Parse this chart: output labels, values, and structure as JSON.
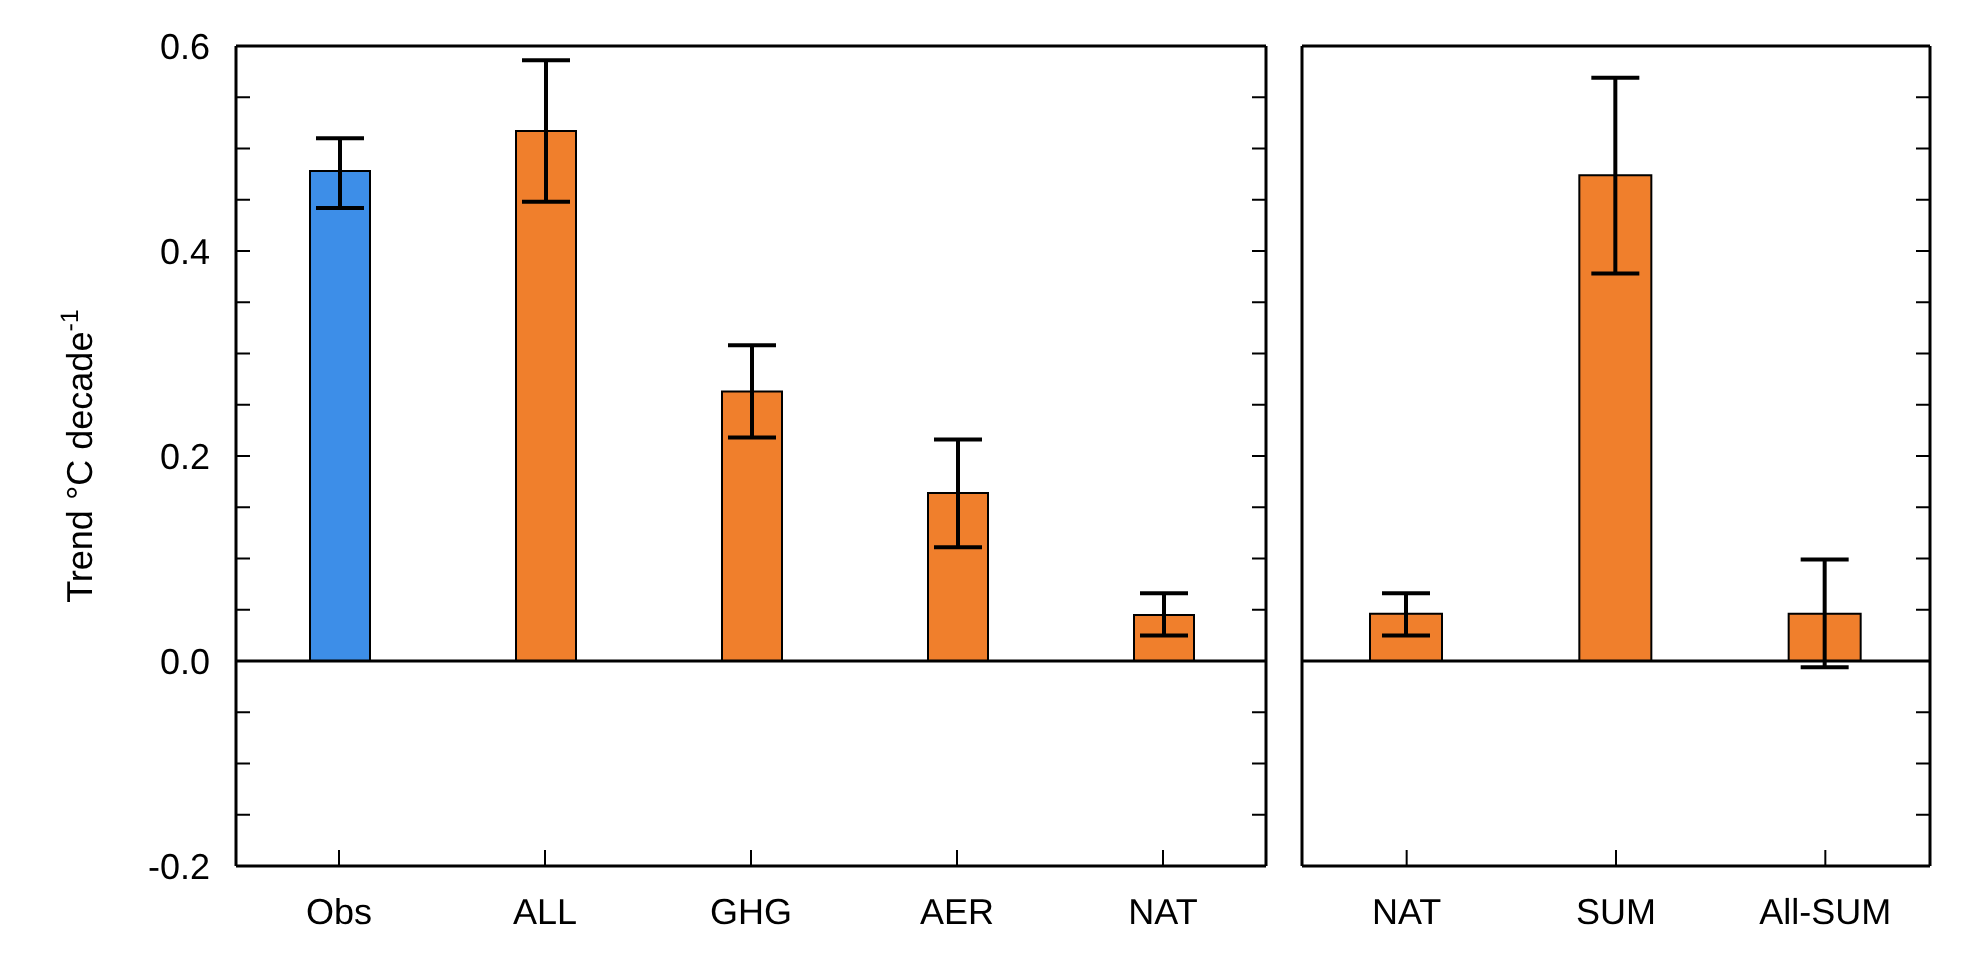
{
  "chart_data": [
    {
      "type": "bar",
      "ylabel": "Trend °C decade$^{-1}$",
      "categories": [
        "Obs",
        "ALL",
        "GHG",
        "AER",
        "NAT"
      ],
      "values": [
        0.478,
        0.517,
        0.263,
        0.164,
        0.045
      ],
      "errors": [
        [
          0.442,
          0.51
        ],
        [
          0.448,
          0.586
        ],
        [
          0.218,
          0.308
        ],
        [
          0.111,
          0.216
        ],
        [
          0.025,
          0.066
        ]
      ],
      "colors": [
        "#3d8ee8",
        "#f07f2c",
        "#f07f2c",
        "#f07f2c",
        "#f07f2c"
      ],
      "ylim": [
        -0.2,
        0.6
      ],
      "yticks": [
        -0.2,
        {
          "value": -0.15,
          "label": null
        },
        {
          "value": -0.1,
          "label": null
        },
        {
          "value": -0.05,
          "label": null
        },
        {
          "value": 0,
          "label": "0.0"
        },
        {
          "value": 0.05,
          "label": null
        },
        {
          "value": 0.1,
          "label": null
        },
        {
          "value": 0.15,
          "label": null
        },
        0.2,
        {
          "value": 0.25,
          "label": null
        },
        {
          "value": 0.3,
          "label": null
        },
        {
          "value": 0.35,
          "label": null
        },
        0.4,
        {
          "value": 0.45,
          "label": null
        },
        {
          "value": 0.5,
          "label": null
        },
        {
          "value": 0.55,
          "label": null
        },
        0.6
      ],
      "ref_lines": [
        {
          "axis": "y",
          "value": 0
        }
      ]
    },
    {
      "type": "bar",
      "categories": [
        "NAT",
        "SUM",
        "All-SUM"
      ],
      "values": [
        0.046,
        0.474,
        0.046
      ],
      "errors": [
        [
          0.025,
          0.066
        ],
        [
          0.378,
          0.569
        ],
        [
          -0.006,
          0.099
        ]
      ],
      "colors": [
        "#f07f2c",
        "#f07f2c",
        "#f07f2c"
      ],
      "ylim": [
        -0.2,
        0.6
      ],
      "yticks": [
        {
          "value": -0.2,
          "label": null
        },
        {
          "value": -0.15,
          "label": null
        },
        {
          "value": -0.1,
          "label": null
        },
        {
          "value": -0.05,
          "label": null
        },
        {
          "value": 0,
          "label": null
        },
        {
          "value": 0.05,
          "label": null
        },
        {
          "value": 0.1,
          "label": null
        },
        {
          "value": 0.15,
          "label": null
        },
        {
          "value": 0.2,
          "label": null
        },
        {
          "value": 0.25,
          "label": null
        },
        {
          "value": 0.3,
          "label": null
        },
        {
          "value": 0.35,
          "label": null
        },
        {
          "value": 0.4,
          "label": null
        },
        {
          "value": 0.45,
          "label": null
        },
        {
          "value": 0.5,
          "label": null
        },
        {
          "value": 0.55,
          "label": null
        },
        {
          "value": 0.6,
          "label": null
        }
      ],
      "tick_labels": "x",
      "ref_lines": [
        {
          "axis": "y",
          "value": 0
        }
      ]
    }
  ]
}
